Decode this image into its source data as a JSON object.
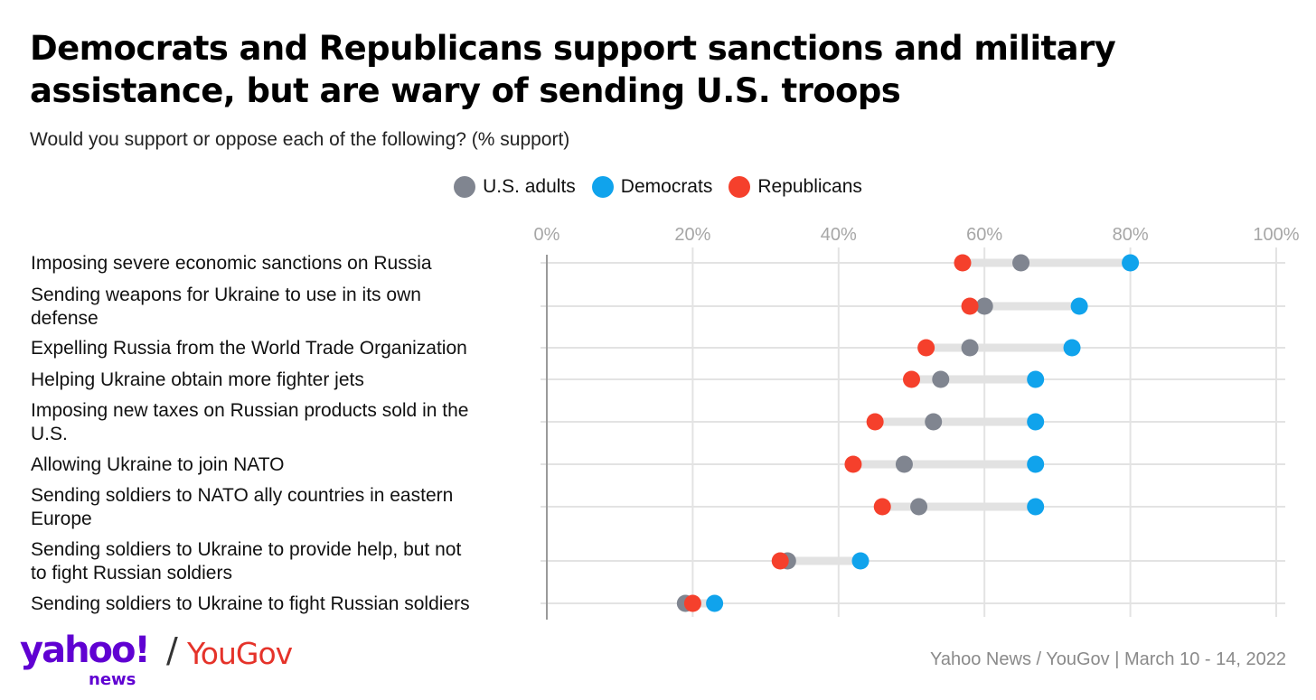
{
  "title": "Democrats and Republicans support sanctions and military assistance, but are wary of sending U.S. troops",
  "subtitle": "Would you support or oppose each of the following? (% support)",
  "source": "Yahoo News / YouGov | March 10 - 14, 2022",
  "logo": {
    "yahoo": "yahoo!",
    "slash": "/",
    "yougov": "YouGov",
    "news": "news"
  },
  "colors": {
    "adults": "#808590",
    "democrats": "#10a3ec",
    "republicans": "#f5402c",
    "connector": "#e2e2e2",
    "grid": "#e3e3e3"
  },
  "chart_data": {
    "type": "dot",
    "xlim": [
      0,
      100
    ],
    "ticks": [
      "0%",
      "20%",
      "40%",
      "60%",
      "80%",
      "100%"
    ],
    "tick_values": [
      0,
      20,
      40,
      60,
      80,
      100
    ],
    "grid": true,
    "legend_placement": "top-center",
    "series": [
      {
        "name": "U.S. adults",
        "key": "adults"
      },
      {
        "name": "Democrats",
        "key": "democrats"
      },
      {
        "name": "Republicans",
        "key": "republicans"
      }
    ],
    "rows": [
      {
        "label": [
          "Imposing severe economic sanctions on Russia"
        ],
        "adults": 65,
        "democrats": 80,
        "republicans": 57
      },
      {
        "label": [
          "Sending weapons for Ukraine to use in its own",
          "defense"
        ],
        "adults": 60,
        "democrats": 73,
        "republicans": 58
      },
      {
        "label": [
          "Expelling Russia from the World Trade Organization"
        ],
        "adults": 58,
        "democrats": 72,
        "republicans": 52
      },
      {
        "label": [
          "Helping Ukraine obtain more fighter jets"
        ],
        "adults": 54,
        "democrats": 67,
        "republicans": 50
      },
      {
        "label": [
          "Imposing new taxes on Russian products sold in the",
          "U.S."
        ],
        "adults": 53,
        "democrats": 67,
        "republicans": 45
      },
      {
        "label": [
          "Allowing Ukraine to join NATO"
        ],
        "adults": 49,
        "democrats": 67,
        "republicans": 42
      },
      {
        "label": [
          "Sending soldiers to NATO ally countries in eastern",
          "Europe"
        ],
        "adults": 51,
        "democrats": 67,
        "republicans": 46
      },
      {
        "label": [
          "Sending soldiers to Ukraine to provide help, but not",
          "to fight Russian soldiers"
        ],
        "adults": 33,
        "democrats": 43,
        "republicans": 32
      },
      {
        "label": [
          "Sending soldiers to Ukraine to fight Russian soldiers"
        ],
        "adults": 19,
        "democrats": 23,
        "republicans": 20
      }
    ]
  }
}
